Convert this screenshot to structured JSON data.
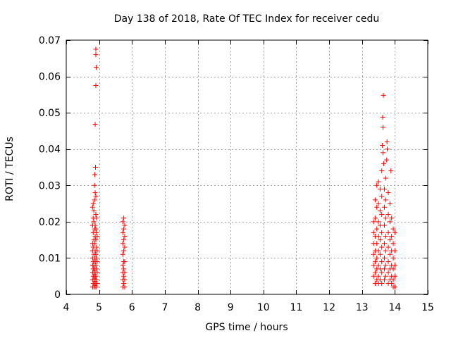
{
  "chart_data": {
    "type": "scatter",
    "title": "Day 138 of 2018, Rate Of TEC Index for receiver cedu",
    "xlabel": "GPS time / hours",
    "ylabel": "ROTI / TECUs",
    "xlim": [
      4,
      15
    ],
    "ylim": [
      0,
      0.07
    ],
    "x_ticks": [
      4,
      5,
      6,
      7,
      8,
      9,
      10,
      11,
      12,
      13,
      14,
      15
    ],
    "y_ticks": [
      0,
      0.01,
      0.02,
      0.03,
      0.04,
      0.05,
      0.06,
      0.07
    ],
    "x_tick_labels": [
      "4",
      "5",
      "6",
      "7",
      "8",
      "9",
      "10",
      "11",
      "12",
      "13",
      "14",
      "15"
    ],
    "y_tick_labels": [
      "0",
      "0.01",
      "0.02",
      "0.03",
      "0.04",
      "0.05",
      "0.06",
      "0.07"
    ],
    "grid": true,
    "marker": "+",
    "marker_color": "#ff0000",
    "series": [
      {
        "name": "ROTI",
        "points": [
          [
            4.8,
            0.002
          ],
          [
            4.8,
            0.004
          ],
          [
            4.8,
            0.006
          ],
          [
            4.8,
            0.008
          ],
          [
            4.8,
            0.01
          ],
          [
            4.8,
            0.012
          ],
          [
            4.8,
            0.014
          ],
          [
            4.8,
            0.019
          ],
          [
            4.8,
            0.024
          ],
          [
            4.82,
            0.003
          ],
          [
            4.82,
            0.005
          ],
          [
            4.82,
            0.007
          ],
          [
            4.82,
            0.009
          ],
          [
            4.82,
            0.013
          ],
          [
            4.82,
            0.017
          ],
          [
            4.82,
            0.021
          ],
          [
            4.82,
            0.025
          ],
          [
            4.84,
            0.002
          ],
          [
            4.84,
            0.004
          ],
          [
            4.84,
            0.006
          ],
          [
            4.84,
            0.008
          ],
          [
            4.84,
            0.011
          ],
          [
            4.84,
            0.015
          ],
          [
            4.84,
            0.02
          ],
          [
            4.84,
            0.023
          ],
          [
            4.86,
            0.003
          ],
          [
            4.86,
            0.005
          ],
          [
            4.86,
            0.007
          ],
          [
            4.86,
            0.01
          ],
          [
            4.86,
            0.014
          ],
          [
            4.86,
            0.018
          ],
          [
            4.86,
            0.026
          ],
          [
            4.86,
            0.03
          ],
          [
            4.87,
            0.033
          ],
          [
            4.88,
            0.002
          ],
          [
            4.88,
            0.004
          ],
          [
            4.88,
            0.006
          ],
          [
            4.88,
            0.009
          ],
          [
            4.88,
            0.012
          ],
          [
            4.88,
            0.016
          ],
          [
            4.88,
            0.019
          ],
          [
            4.88,
            0.028
          ],
          [
            4.89,
            0.035
          ],
          [
            4.9,
            0.003
          ],
          [
            4.9,
            0.005
          ],
          [
            4.9,
            0.008
          ],
          [
            4.9,
            0.011
          ],
          [
            4.9,
            0.015
          ],
          [
            4.9,
            0.018
          ],
          [
            4.9,
            0.022
          ],
          [
            4.9,
            0.027
          ],
          [
            4.92,
            0.002
          ],
          [
            4.92,
            0.004
          ],
          [
            4.92,
            0.007
          ],
          [
            4.92,
            0.01
          ],
          [
            4.92,
            0.013
          ],
          [
            4.92,
            0.017
          ],
          [
            4.92,
            0.021
          ],
          [
            4.94,
            0.003
          ],
          [
            4.94,
            0.006
          ],
          [
            4.94,
            0.009
          ],
          [
            4.94,
            0.012
          ],
          [
            4.94,
            0.016
          ],
          [
            4.88,
            0.0468
          ],
          [
            4.9,
            0.0575
          ],
          [
            4.91,
            0.0625
          ],
          [
            4.9,
            0.066
          ],
          [
            4.9,
            0.0675
          ],
          [
            5.72,
            0.002
          ],
          [
            5.72,
            0.004
          ],
          [
            5.72,
            0.006
          ],
          [
            5.72,
            0.008
          ],
          [
            5.72,
            0.011
          ],
          [
            5.72,
            0.014
          ],
          [
            5.72,
            0.017
          ],
          [
            5.72,
            0.02
          ],
          [
            5.75,
            0.003
          ],
          [
            5.75,
            0.005
          ],
          [
            5.75,
            0.007
          ],
          [
            5.75,
            0.009
          ],
          [
            5.75,
            0.012
          ],
          [
            5.75,
            0.015
          ],
          [
            5.75,
            0.018
          ],
          [
            5.75,
            0.021
          ],
          [
            5.78,
            0.002
          ],
          [
            5.78,
            0.004
          ],
          [
            5.78,
            0.006
          ],
          [
            5.78,
            0.009
          ],
          [
            5.78,
            0.013
          ],
          [
            5.78,
            0.016
          ],
          [
            5.78,
            0.019
          ],
          [
            13.35,
            0.005
          ],
          [
            13.35,
            0.008
          ],
          [
            13.35,
            0.011
          ],
          [
            13.35,
            0.014
          ],
          [
            13.35,
            0.017
          ],
          [
            13.35,
            0.02
          ],
          [
            13.4,
            0.003
          ],
          [
            13.4,
            0.006
          ],
          [
            13.4,
            0.009
          ],
          [
            13.4,
            0.012
          ],
          [
            13.4,
            0.016
          ],
          [
            13.4,
            0.021
          ],
          [
            13.4,
            0.026
          ],
          [
            13.45,
            0.004
          ],
          [
            13.45,
            0.007
          ],
          [
            13.45,
            0.01
          ],
          [
            13.45,
            0.014
          ],
          [
            13.45,
            0.018
          ],
          [
            13.45,
            0.024
          ],
          [
            13.45,
            0.03
          ],
          [
            13.5,
            0.003
          ],
          [
            13.5,
            0.005
          ],
          [
            13.5,
            0.008
          ],
          [
            13.5,
            0.012
          ],
          [
            13.5,
            0.016
          ],
          [
            13.5,
            0.02
          ],
          [
            13.5,
            0.025
          ],
          [
            13.5,
            0.031
          ],
          [
            13.55,
            0.004
          ],
          [
            13.55,
            0.007
          ],
          [
            13.55,
            0.011
          ],
          [
            13.55,
            0.015
          ],
          [
            13.55,
            0.019
          ],
          [
            13.55,
            0.023
          ],
          [
            13.55,
            0.029
          ],
          [
            13.6,
            0.003
          ],
          [
            13.6,
            0.006
          ],
          [
            13.6,
            0.009
          ],
          [
            13.6,
            0.013
          ],
          [
            13.6,
            0.017
          ],
          [
            13.6,
            0.022
          ],
          [
            13.6,
            0.027
          ],
          [
            13.6,
            0.034
          ],
          [
            13.62,
            0.041
          ],
          [
            13.64,
            0.046
          ],
          [
            13.63,
            0.0488
          ],
          [
            13.65,
            0.0548
          ],
          [
            13.66,
            0.036
          ],
          [
            13.64,
            0.039
          ],
          [
            13.68,
            0.004
          ],
          [
            13.68,
            0.007
          ],
          [
            13.68,
            0.01
          ],
          [
            13.68,
            0.014
          ],
          [
            13.68,
            0.019
          ],
          [
            13.68,
            0.024
          ],
          [
            13.68,
            0.029
          ],
          [
            13.72,
            0.005
          ],
          [
            13.72,
            0.008
          ],
          [
            13.72,
            0.012
          ],
          [
            13.72,
            0.016
          ],
          [
            13.72,
            0.021
          ],
          [
            13.72,
            0.026
          ],
          [
            13.72,
            0.032
          ],
          [
            13.75,
            0.037
          ],
          [
            13.77,
            0.04
          ],
          [
            13.76,
            0.042
          ],
          [
            13.8,
            0.003
          ],
          [
            13.8,
            0.006
          ],
          [
            13.8,
            0.009
          ],
          [
            13.8,
            0.013
          ],
          [
            13.8,
            0.017
          ],
          [
            13.8,
            0.022
          ],
          [
            13.8,
            0.028
          ],
          [
            13.85,
            0.004
          ],
          [
            13.85,
            0.007
          ],
          [
            13.85,
            0.011
          ],
          [
            13.85,
            0.015
          ],
          [
            13.85,
            0.02
          ],
          [
            13.85,
            0.025
          ],
          [
            13.88,
            0.034
          ],
          [
            13.9,
            0.003
          ],
          [
            13.9,
            0.005
          ],
          [
            13.9,
            0.008
          ],
          [
            13.9,
            0.012
          ],
          [
            13.9,
            0.016
          ],
          [
            13.9,
            0.021
          ],
          [
            13.95,
            0.002
          ],
          [
            13.95,
            0.004
          ],
          [
            13.95,
            0.007
          ],
          [
            13.95,
            0.01
          ],
          [
            13.95,
            0.014
          ],
          [
            13.95,
            0.018
          ],
          [
            14.0,
            0.002
          ],
          [
            14.0,
            0.005
          ],
          [
            14.0,
            0.008
          ],
          [
            14.0,
            0.012
          ],
          [
            14.0,
            0.017
          ]
        ]
      }
    ]
  }
}
